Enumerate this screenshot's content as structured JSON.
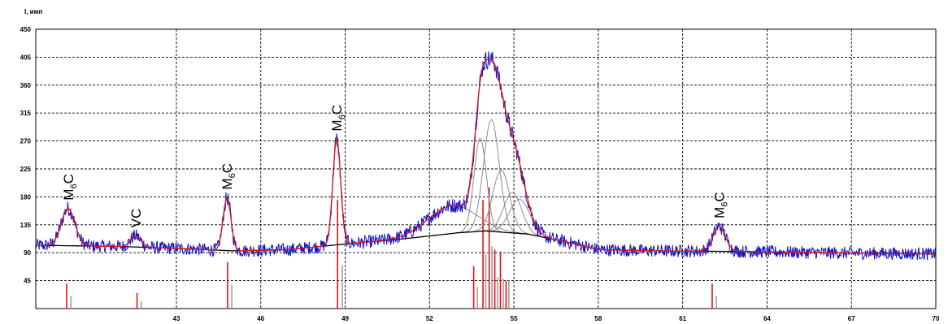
{
  "chart_data": {
    "type": "line",
    "title": "",
    "ylabel": "I, имп",
    "xlabel": "",
    "xlim": [
      38,
      70
    ],
    "ylim": [
      0,
      450
    ],
    "x_ticks": [
      {
        "v": 43,
        "label": "43"
      },
      {
        "v": 46,
        "label": "46"
      },
      {
        "v": 49,
        "label": "49"
      },
      {
        "v": 52,
        "label": "52"
      },
      {
        "v": 55,
        "label": "55"
      },
      {
        "v": 58,
        "label": "58"
      },
      {
        "v": 61,
        "label": "61"
      },
      {
        "v": 64,
        "label": "64"
      },
      {
        "v": 67,
        "label": "67"
      },
      {
        "v": 70,
        "label": "70"
      }
    ],
    "y_ticks": [
      {
        "v": 45,
        "label": "45"
      },
      {
        "v": 90,
        "label": "90"
      },
      {
        "v": 135,
        "label": "135"
      },
      {
        "v": 180,
        "label": "180"
      },
      {
        "v": 225,
        "label": "225"
      },
      {
        "v": 270,
        "label": "270"
      },
      {
        "v": 315,
        "label": "315"
      },
      {
        "v": 360,
        "label": "360"
      },
      {
        "v": 405,
        "label": "405"
      },
      {
        "v": 450,
        "label": "450"
      }
    ],
    "grid": true,
    "colors": {
      "measured": "#1414c8",
      "fit": "#e01414",
      "components": "#8c8c8c",
      "background": "#000000",
      "ref_red": "#e01414",
      "ref_gray": "#a0a0a0"
    },
    "baseline": [
      [
        38,
        102
      ],
      [
        41,
        100
      ],
      [
        43,
        97
      ],
      [
        45,
        93
      ],
      [
        47,
        95
      ],
      [
        49,
        104
      ],
      [
        51,
        112
      ],
      [
        53,
        122
      ],
      [
        54,
        125
      ],
      [
        55.5,
        120
      ],
      [
        57,
        106
      ],
      [
        58,
        95
      ],
      [
        60,
        93
      ],
      [
        63,
        92
      ],
      [
        66,
        90
      ],
      [
        70,
        88
      ]
    ],
    "peaks": [
      {
        "x": 39.15,
        "height": 60,
        "sigma": 0.24,
        "label": "M",
        "sub": "6",
        "suffix": "C"
      },
      {
        "x": 41.55,
        "height": 18,
        "sigma": 0.18,
        "label": "VC",
        "sub": "",
        "suffix": ""
      },
      {
        "x": 44.8,
        "height": 85,
        "sigma": 0.14,
        "label": "M",
        "sub": "6",
        "suffix": "C"
      },
      {
        "x": 48.7,
        "height": 170,
        "sigma": 0.14,
        "label": "M",
        "sub": "6",
        "suffix": "C"
      },
      {
        "x": 52.8,
        "height": 45,
        "sigma": 0.85,
        "label": "",
        "sub": "",
        "suffix": ""
      },
      {
        "x": 53.8,
        "height": 150,
        "sigma": 0.22,
        "label": "",
        "sub": "",
        "suffix": ""
      },
      {
        "x": 54.2,
        "height": 180,
        "sigma": 0.28,
        "label": "",
        "sub": "",
        "suffix": ""
      },
      {
        "x": 54.55,
        "height": 100,
        "sigma": 0.3,
        "label": "",
        "sub": "",
        "suffix": ""
      },
      {
        "x": 54.95,
        "height": 65,
        "sigma": 0.32,
        "label": "",
        "sub": "",
        "suffix": ""
      },
      {
        "x": 55.2,
        "height": 55,
        "sigma": 0.36,
        "label": "",
        "sub": "",
        "suffix": ""
      },
      {
        "x": 62.3,
        "height": 40,
        "sigma": 0.22,
        "label": "M",
        "sub": "6",
        "suffix": "C"
      }
    ],
    "ref_lines": [
      {
        "x": 39.1,
        "h": 40,
        "color": "red"
      },
      {
        "x": 39.25,
        "h": 20,
        "color": "gray"
      },
      {
        "x": 41.6,
        "h": 25,
        "color": "red"
      },
      {
        "x": 41.75,
        "h": 12,
        "color": "gray"
      },
      {
        "x": 44.82,
        "h": 75,
        "color": "red"
      },
      {
        "x": 44.97,
        "h": 38,
        "color": "gray"
      },
      {
        "x": 48.73,
        "h": 175,
        "color": "red"
      },
      {
        "x": 48.9,
        "h": 70,
        "color": "gray"
      },
      {
        "x": 53.57,
        "h": 68,
        "color": "red"
      },
      {
        "x": 53.7,
        "h": 35,
        "color": "gray"
      },
      {
        "x": 53.9,
        "h": 175,
        "color": "red"
      },
      {
        "x": 54.0,
        "h": 88,
        "color": "gray"
      },
      {
        "x": 54.12,
        "h": 195,
        "color": "red"
      },
      {
        "x": 54.22,
        "h": 100,
        "color": "gray"
      },
      {
        "x": 54.32,
        "h": 95,
        "color": "red"
      },
      {
        "x": 54.42,
        "h": 50,
        "color": "gray"
      },
      {
        "x": 54.52,
        "h": 92,
        "color": "red"
      },
      {
        "x": 54.62,
        "h": 48,
        "color": "gray"
      },
      {
        "x": 54.72,
        "h": 45,
        "color": "red"
      },
      {
        "x": 54.82,
        "h": 45,
        "color": "gray"
      },
      {
        "x": 62.05,
        "h": 40,
        "color": "red"
      },
      {
        "x": 62.2,
        "h": 20,
        "color": "gray"
      }
    ]
  }
}
